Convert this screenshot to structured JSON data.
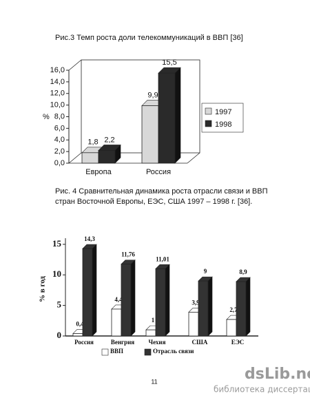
{
  "chart_data": [
    {
      "type": "bar",
      "title": "Рис.3 Темп роста доли телекоммуникаций в ВВП [36]",
      "y_label": "%",
      "categories": [
        "Европа",
        "Россия"
      ],
      "series": [
        {
          "name": "1997",
          "color": "#d8d8d8",
          "values": [
            1.8,
            9.9
          ],
          "value_labels": [
            "1,8",
            "9,9"
          ]
        },
        {
          "name": "1998",
          "color": "#2a2a2a",
          "values": [
            2.2,
            15.5
          ],
          "value_labels": [
            "2,2",
            "15,5"
          ]
        }
      ],
      "ylim": [
        0,
        16
      ],
      "yticks": [
        {
          "value": 0,
          "label": "0,0"
        },
        {
          "value": 2,
          "label": "2,0"
        },
        {
          "value": 4,
          "label": "4,0"
        },
        {
          "value": 6,
          "label": "6,0"
        },
        {
          "value": 8,
          "label": "8,0"
        },
        {
          "value": 10,
          "label": "10,0"
        },
        {
          "value": 12,
          "label": "12,0"
        },
        {
          "value": 14,
          "label": "14,0"
        },
        {
          "value": 16,
          "label": "16,0"
        }
      ],
      "legend": "right"
    },
    {
      "type": "bar",
      "title": [
        "Рис. 4  Сравнительная динамика роста отрасли связи и ВВП",
        "стран Восточной Европы, ЕЭС, США 1997 – 1998 г. [36]."
      ],
      "y_label": "% в год",
      "categories": [
        "Россия",
        "Венгрия",
        "Чехия",
        "США",
        "ЕЭС"
      ],
      "series": [
        {
          "name": "ВВП",
          "color": "#ffffff",
          "values": [
            0.4,
            4.4,
            1,
            3.9,
            2.7
          ],
          "value_labels": [
            "0,4",
            "4,4",
            "1",
            "3,9",
            "2,7"
          ]
        },
        {
          "name": "Отрасль связи",
          "color": "#333333",
          "values": [
            14.3,
            11.76,
            11.01,
            9,
            8.9
          ],
          "value_labels": [
            "14,3",
            "11,76",
            "11,01",
            "9",
            "8,9"
          ]
        }
      ],
      "ylim": [
        0,
        16
      ],
      "yticks": [
        0,
        5,
        10,
        15
      ],
      "legend": "bottom"
    }
  ],
  "page_number": "11",
  "watermark": {
    "site": "dsLib.net",
    "caption": "библиотека диссертаций"
  }
}
